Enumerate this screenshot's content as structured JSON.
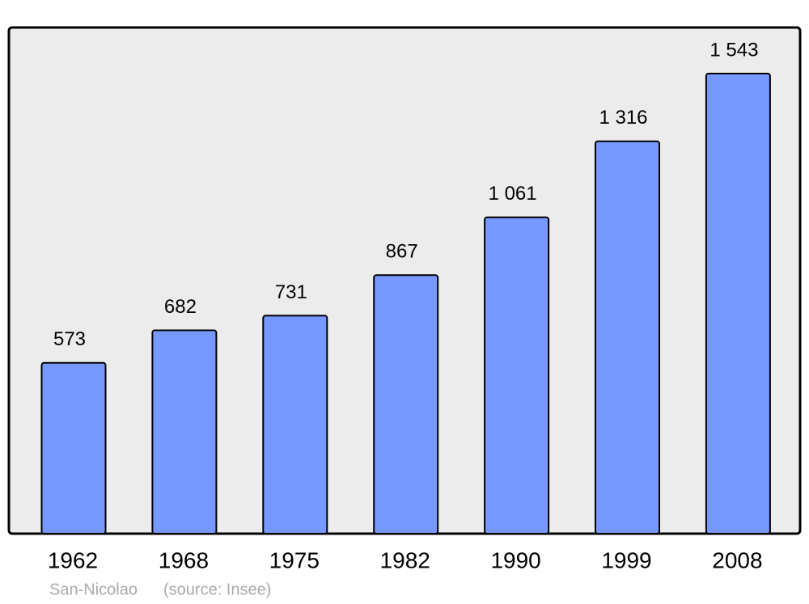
{
  "chart_data": {
    "type": "bar",
    "categories": [
      "1962",
      "1968",
      "1975",
      "1982",
      "1990",
      "1999",
      "2008"
    ],
    "values": [
      573,
      682,
      731,
      867,
      1061,
      1316,
      1543
    ],
    "value_labels": [
      "573",
      "682",
      "731",
      "867",
      "1 061",
      "1 316",
      "1 543"
    ],
    "color": "#7799ff",
    "place": "San-Nicolao",
    "source": "(source: Insee)"
  }
}
